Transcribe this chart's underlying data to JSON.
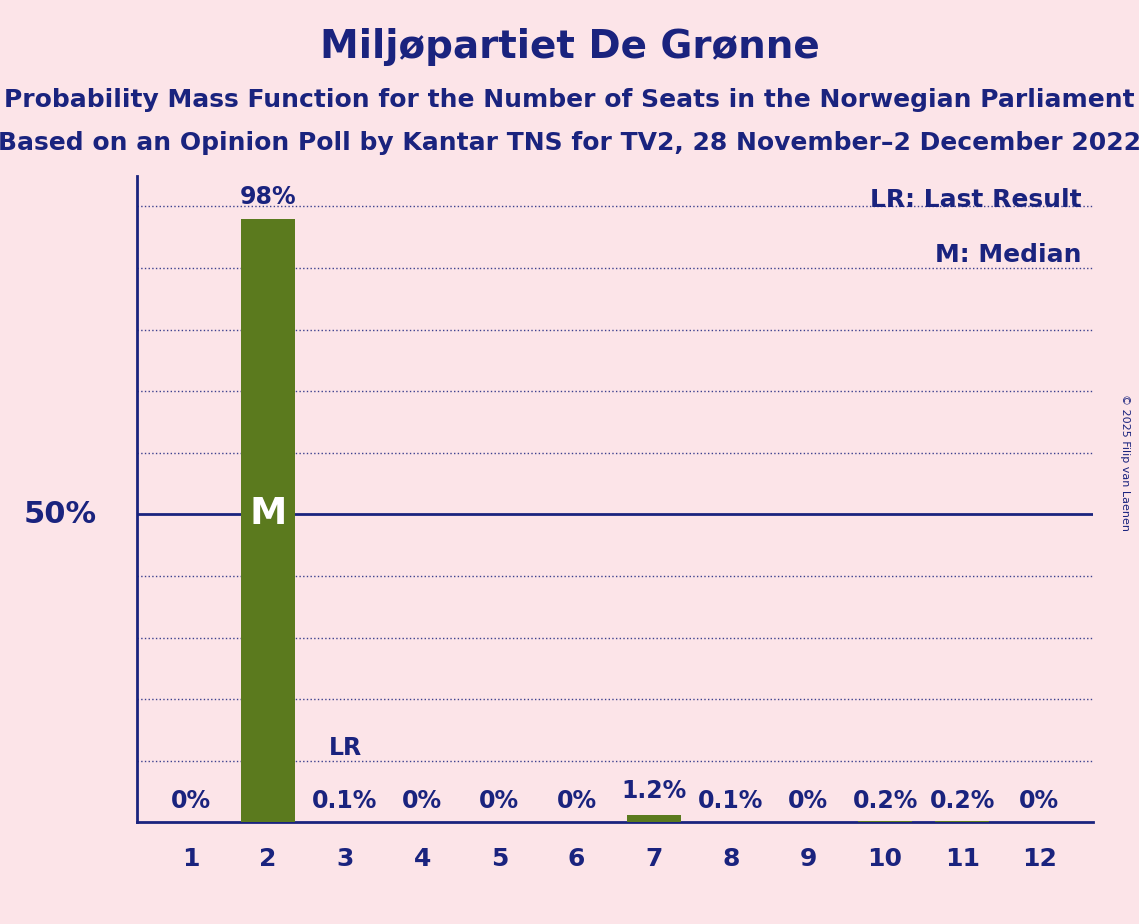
{
  "title": "Miljøpartiet De Grønne",
  "subtitle1": "Probability Mass Function for the Number of Seats in the Norwegian Parliament",
  "subtitle2": "Based on an Opinion Poll by Kantar TNS for TV2, 28 November–2 December 2022",
  "copyright": "© 2025 Filip van Laenen",
  "seats": [
    1,
    2,
    3,
    4,
    5,
    6,
    7,
    8,
    9,
    10,
    11,
    12
  ],
  "probabilities": [
    0.0,
    98.0,
    0.1,
    0.0,
    0.0,
    0.0,
    1.2,
    0.1,
    0.0,
    0.2,
    0.2,
    0.0
  ],
  "prob_labels": [
    "0%",
    "98%",
    "0.1%",
    "0%",
    "0%",
    "0%",
    "1.2%",
    "0.1%",
    "0%",
    "0.2%",
    "0.2%",
    "0%"
  ],
  "bar_color": "#5b7a1e",
  "background_color": "#fce4e8",
  "text_color": "#1a237e",
  "median_seat": 2,
  "lr_seat": 3,
  "lr_label": "LR",
  "median_label": "M",
  "median_line_y": 50.0,
  "y_label_50": "50%",
  "ylim": [
    0,
    105
  ],
  "legend_lr": "LR: Last Result",
  "legend_m": "M: Median",
  "title_fontsize": 28,
  "subtitle_fontsize": 18,
  "tick_fontsize": 18,
  "bar_label_fontsize": 17,
  "axis_label_fontsize": 22,
  "legend_fontsize": 18,
  "grid_positions": [
    10,
    20,
    30,
    40,
    60,
    70,
    80,
    90,
    100
  ]
}
